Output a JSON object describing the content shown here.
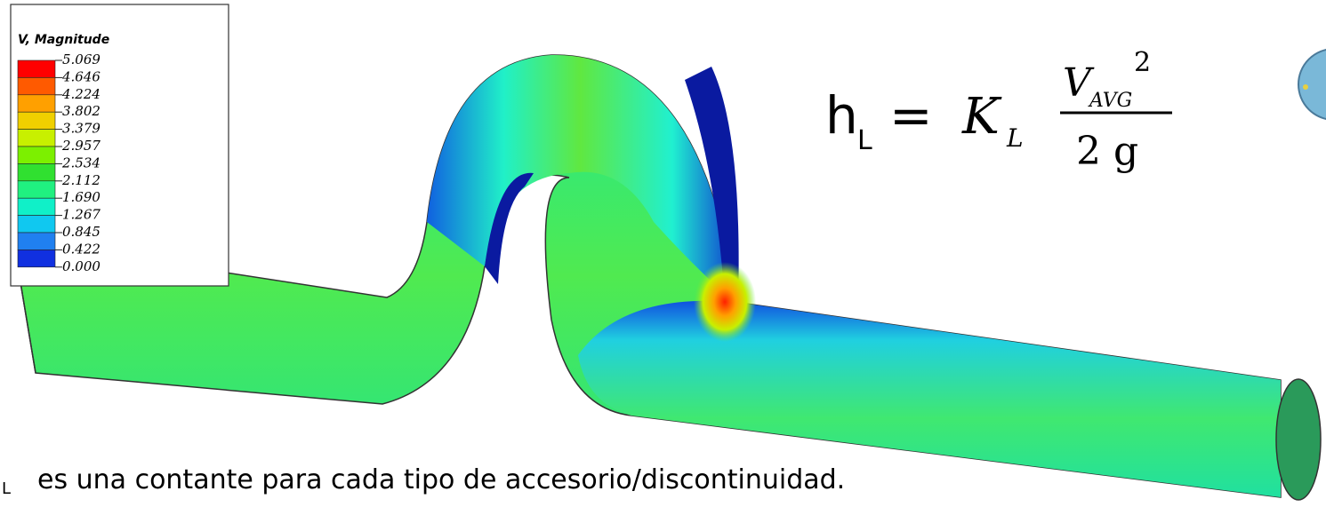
{
  "legend": {
    "title": "V, Magnitude",
    "labels": [
      "5.069",
      "4.646",
      "4.224",
      "3.802",
      "3.379",
      "2.957",
      "2.534",
      "2.112",
      "1.690",
      "1.267",
      "0.845",
      "0.422",
      "0.000"
    ],
    "colors": [
      "#ff0000",
      "#ff5a00",
      "#ffa000",
      "#f0d000",
      "#c8f000",
      "#7cf000",
      "#30e030",
      "#20f080",
      "#10f0c8",
      "#10c8f0",
      "#2080f0",
      "#1030e0"
    ]
  },
  "equation": {
    "lhs": "h",
    "lhs_sub": "L",
    "equals": "=",
    "coef": "K",
    "coef_sub": "L",
    "numerator": "V",
    "numerator_sub": "AVG",
    "numerator_exp": "2",
    "denominator": "2 g"
  },
  "caption": {
    "sub": "L",
    "text": "es una contante para cada tipo de accesorio/discontinuidad."
  }
}
